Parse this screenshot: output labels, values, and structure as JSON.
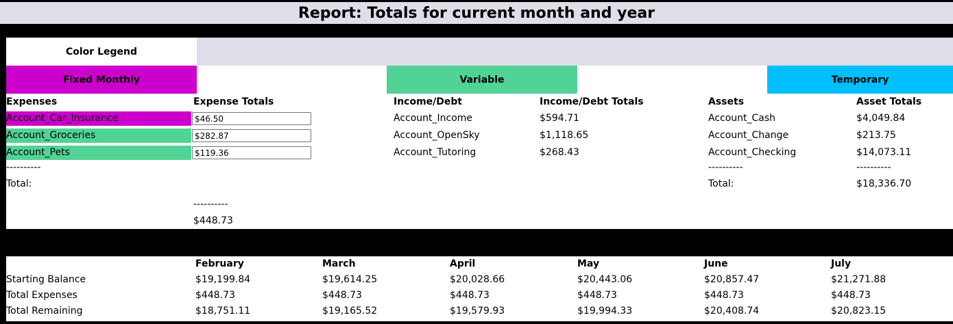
{
  "title": "Report: Totals for current month and year",
  "legend": {
    "header": "Color Legend",
    "items": [
      {
        "label": "Fixed Monthly",
        "color": "#cc00cc"
      },
      {
        "label": "Variable",
        "color": "#52d396"
      },
      {
        "label": "Temporary",
        "color": "#00bfff"
      }
    ]
  },
  "expenses": {
    "col1_header": "Expenses",
    "col2_header": "Expense Totals",
    "rows": [
      {
        "name": "Account_Car_Insurance",
        "value": "$46.50",
        "color": "#cc00cc"
      },
      {
        "name": "Account_Groceries",
        "value": "$282.87",
        "color": "#52d396"
      },
      {
        "name": "Account_Pets",
        "value": "$119.36",
        "color": "#52d396"
      }
    ],
    "separator": "----------",
    "total_label": "Total:",
    "total_separator": "----------",
    "total_value": "$448.73"
  },
  "income": {
    "col1_header": "Income/Debt",
    "col2_header": "Income/Debt Totals",
    "rows": [
      {
        "name": "Account_Income",
        "value": "$594.71"
      },
      {
        "name": "Account_OpenSky",
        "value": "$1,118.65"
      },
      {
        "name": "Account_Tutoring",
        "value": "$268.43"
      }
    ]
  },
  "assets": {
    "col1_header": "Assets",
    "col2_header": "Asset Totals",
    "rows": [
      {
        "name": "Account_Cash",
        "value": "$4,049.84"
      },
      {
        "name": "Account_Change",
        "value": "$213.75"
      },
      {
        "name": "Account_Checking",
        "value": "$14,073.11"
      }
    ],
    "separator_left": "----------",
    "separator_right": "----------",
    "total_label": "Total:",
    "total_value": "$18,336.70"
  },
  "summary": {
    "months": [
      "February",
      "March",
      "April",
      "May",
      "June",
      "July"
    ],
    "rows": [
      {
        "label": "Starting Balance",
        "values": [
          "$19,199.84",
          "$19,614.25",
          "$20,028.66",
          "$20,443.06",
          "$20,857.47",
          "$21,271.88"
        ]
      },
      {
        "label": "Total Expenses",
        "values": [
          "$448.73",
          "$448.73",
          "$448.73",
          "$448.73",
          "$448.73",
          "$448.73"
        ]
      },
      {
        "label": "Total Remaining",
        "values": [
          "$18,751.11",
          "$19,165.52",
          "$19,579.93",
          "$19,994.33",
          "$20,408.74",
          "$20,823.15"
        ]
      }
    ]
  }
}
